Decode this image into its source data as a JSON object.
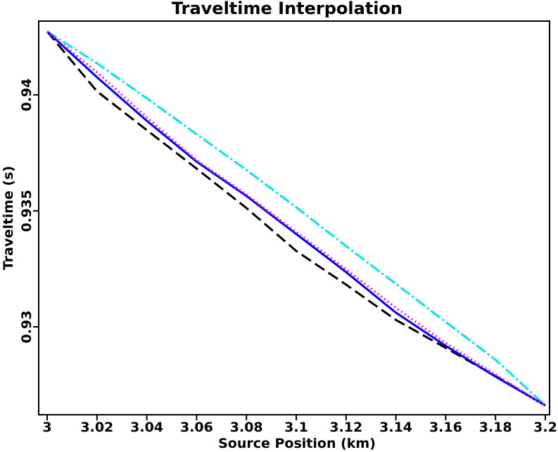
{
  "chart_data": {
    "type": "line",
    "title": "Traveltime Interpolation",
    "x_label": "Source Position (km)",
    "y_label": "Traveltime (s)",
    "x": [
      3,
      3.02,
      3.04,
      3.06,
      3.08,
      3.1,
      3.12,
      3.14,
      3.16,
      3.18,
      3.2
    ],
    "series": [
      {
        "color": "#00e5e5",
        "dash": "16,4,3,4",
        "values": [
          0.94273,
          0.94136,
          0.93985,
          0.9383,
          0.93676,
          0.93515,
          0.93348,
          0.93185,
          0.93021,
          0.92858,
          0.92661
        ]
      },
      {
        "color": "#000000",
        "dash": "16,7",
        "values": [
          0.94273,
          0.94015,
          0.93848,
          0.93682,
          0.93512,
          0.93327,
          0.93182,
          0.9303,
          0.92909,
          0.92788,
          0.92661
        ]
      },
      {
        "color": "#0000ff",
        "dash": "none",
        "values": [
          0.94273,
          0.94076,
          0.93888,
          0.93712,
          0.93564,
          0.934,
          0.93236,
          0.93061,
          0.92918,
          0.92785,
          0.92661
        ]
      },
      {
        "color": "#ff00ff",
        "dash": "2,4",
        "values": [
          0.94273,
          0.94097,
          0.93903,
          0.93718,
          0.9357,
          0.93409,
          0.93248,
          0.93082,
          0.9293,
          0.92794,
          0.92661
        ]
      }
    ],
    "xlim": [
      2.9966,
      3.2017
    ],
    "ylim": [
      0.92621,
      0.94318
    ],
    "xticks": [
      3,
      3.02,
      3.04,
      3.06,
      3.08,
      3.1,
      3.12,
      3.14,
      3.16,
      3.18,
      3.2
    ],
    "yticks": [
      0.93,
      0.935,
      0.94
    ]
  }
}
